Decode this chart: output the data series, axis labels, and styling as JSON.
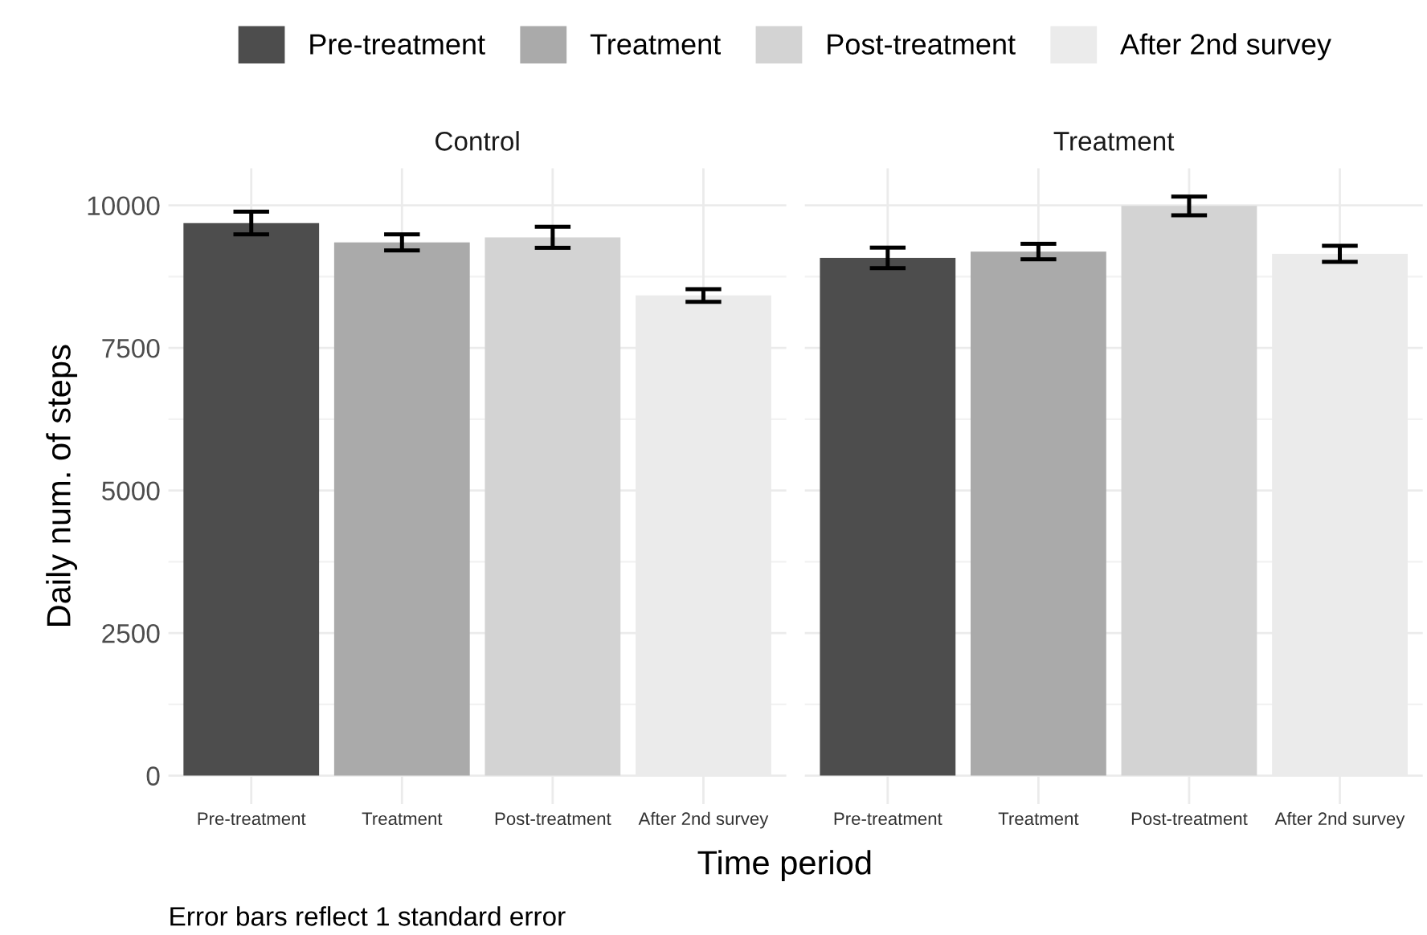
{
  "chart_data": [
    {
      "type": "bar",
      "title": "Control",
      "xlabel": "Time period",
      "ylabel": "Daily num. of steps",
      "categories": [
        "Pre-treatment",
        "Treatment",
        "Post-treatment",
        "After 2nd survey"
      ],
      "series": [
        {
          "name": "Pre-treatment",
          "color": "#4d4d4d",
          "values": [
            9690,
            null,
            null,
            null
          ],
          "errors": [
            200,
            null,
            null,
            null
          ]
        },
        {
          "name": "Treatment",
          "color": "#aaaaaa",
          "values": [
            null,
            9350,
            null,
            null
          ],
          "errors": [
            null,
            140,
            null,
            null
          ]
        },
        {
          "name": "Post-treatment",
          "color": "#d3d3d3",
          "values": [
            null,
            null,
            9440,
            null
          ],
          "errors": [
            null,
            null,
            185,
            null
          ]
        },
        {
          "name": "After 2nd survey",
          "color": "#ebebeb",
          "values": [
            null,
            null,
            null,
            8420
          ],
          "errors": [
            null,
            null,
            null,
            110
          ]
        }
      ],
      "ylim": [
        -500,
        10650
      ],
      "yticks": [
        0,
        2500,
        5000,
        7500,
        10000
      ],
      "grid": true,
      "legend": "top",
      "annotations": [
        "Error bars reflect 1 standard error"
      ]
    },
    {
      "type": "bar",
      "title": "Treatment",
      "categories": [
        "Pre-treatment",
        "Treatment",
        "Post-treatment",
        "After 2nd survey"
      ],
      "series": [
        {
          "color": "#4d4d4d",
          "values": [
            9080,
            null,
            null,
            null
          ],
          "errors": [
            180,
            null,
            null,
            null
          ]
        },
        {
          "color": "#aaaaaa",
          "values": [
            null,
            9190,
            null,
            null
          ],
          "errors": [
            null,
            135,
            null,
            null
          ]
        },
        {
          "color": "#d3d3d3",
          "values": [
            null,
            null,
            9990,
            null
          ],
          "errors": [
            null,
            null,
            165,
            null
          ]
        },
        {
          "color": "#ebebeb",
          "values": [
            null,
            null,
            null,
            9150
          ],
          "errors": [
            null,
            null,
            null,
            140
          ]
        }
      ],
      "ylim": [
        -500,
        10650
      ],
      "yticks": [
        0,
        2500,
        5000,
        7500,
        10000
      ],
      "grid": true,
      "tick_labels": "x"
    }
  ]
}
